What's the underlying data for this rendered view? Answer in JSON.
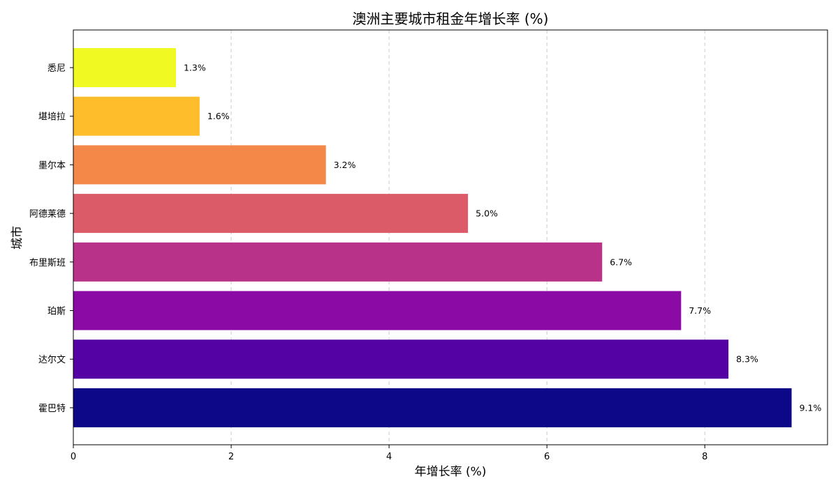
{
  "chart_data": {
    "type": "bar",
    "orientation": "horizontal",
    "title": "澳洲主要城市租金年增长率 (%)",
    "xlabel": "年增长率 (%)",
    "ylabel": "城市",
    "categories": [
      "霍巴特",
      "达尔文",
      "珀斯",
      "布里斯班",
      "阿德莱德",
      "墨尔本",
      "堪培拉",
      "悉尼"
    ],
    "values": [
      9.1,
      8.3,
      7.7,
      6.7,
      5.0,
      3.2,
      1.6,
      1.3
    ],
    "value_labels": [
      "9.1%",
      "8.3%",
      "7.7%",
      "6.7%",
      "5.0%",
      "3.2%",
      "1.6%",
      "1.3%"
    ],
    "colors": [
      "#0d0887",
      "#5402a3",
      "#8b0aa5",
      "#b83289",
      "#db5c68",
      "#f48849",
      "#febd2a",
      "#f0f921"
    ],
    "xlim": [
      0,
      9.555
    ],
    "xticks": [
      0,
      2,
      4,
      6,
      8
    ],
    "xtick_labels": [
      "0",
      "2",
      "4",
      "6",
      "8"
    ],
    "grid": "x-dashed",
    "legend": "none"
  }
}
